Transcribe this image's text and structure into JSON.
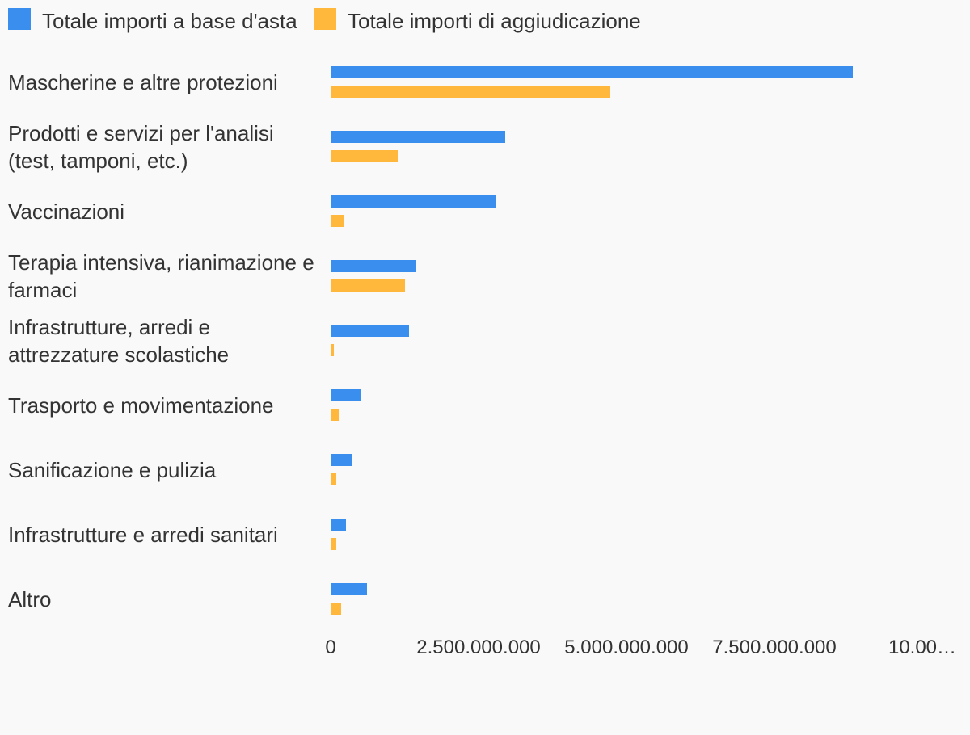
{
  "chart_data": {
    "type": "hbar",
    "categories": [
      "Mascherine e altre protezioni",
      "Prodotti e servizi per l'analisi (test, tamponi, etc.)",
      "Vaccinazioni",
      "Terapia intensiva, rianimazione e farmaci",
      "Infrastrutture, arredi e attrezzature scolastiche",
      "Trasporto e movimentazione",
      "Sanificazione e pulizia",
      "Infrastrutture e arredi sanitari",
      "Altro"
    ],
    "series": [
      {
        "name": "Totale importi a base d'asta",
        "color": "#3a8eed",
        "values": [
          8820000000,
          2950000000,
          2790000000,
          1450000000,
          1330000000,
          500000000,
          360000000,
          260000000,
          620000000
        ]
      },
      {
        "name": "Totale importi di aggiudicazione",
        "color": "#ffb83b",
        "values": [
          4720000000,
          1130000000,
          230000000,
          1260000000,
          50000000,
          130000000,
          100000000,
          90000000,
          180000000
        ]
      }
    ],
    "xlim": [
      0,
      10000000000
    ],
    "xticks": [
      0,
      {
        "value": 2500000000,
        "label": "2.500.000.000"
      },
      {
        "value": 5000000000,
        "label": "5.000.000.000"
      },
      {
        "value": 7500000000,
        "label": "7.500.000.000"
      },
      {
        "value": 10000000000,
        "label": "10.00…"
      }
    ],
    "legend": "top"
  }
}
